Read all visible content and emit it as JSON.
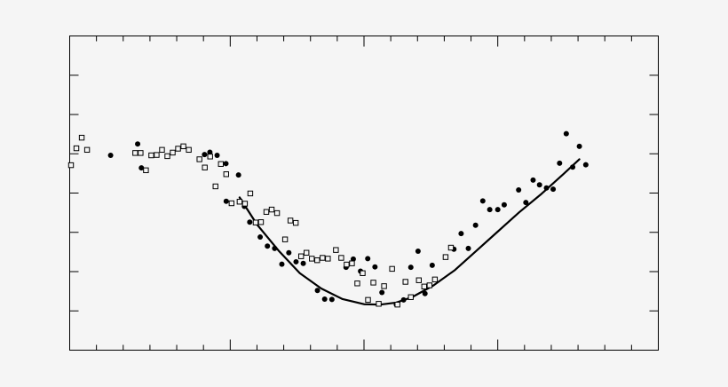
{
  "chart_data": {
    "type": "scatter",
    "title": "",
    "xlabel": "",
    "ylabel": "",
    "xlim": [
      0,
      22
    ],
    "ylim": [
      0,
      8
    ],
    "x_major_ticks": [
      6,
      11,
      16
    ],
    "x_minor_ticks": [
      1,
      2,
      3,
      4,
      5,
      7,
      8,
      9,
      10,
      12,
      13,
      14,
      15,
      17,
      18,
      19,
      20,
      21
    ],
    "y_ticks": [
      1,
      2,
      3,
      4,
      5,
      6,
      7
    ],
    "grid": false,
    "legend": "none",
    "colors": {
      "background": "#f5f5f5",
      "plot_background": "#f5f5f5",
      "ink": "#000000"
    },
    "series": [
      {
        "marker": "filled-circle",
        "points": [
          [
            1.53,
            4.96
          ],
          [
            2.54,
            5.25
          ],
          [
            2.68,
            4.64
          ],
          [
            5.04,
            4.98
          ],
          [
            5.24,
            5.04
          ],
          [
            5.51,
            4.96
          ],
          [
            5.84,
            4.75
          ],
          [
            6.31,
            4.46
          ],
          [
            5.85,
            3.79
          ],
          [
            6.53,
            3.66
          ],
          [
            6.73,
            3.26
          ],
          [
            7.12,
            2.88
          ],
          [
            7.39,
            2.65
          ],
          [
            7.66,
            2.59
          ],
          [
            7.93,
            2.19
          ],
          [
            8.19,
            2.48
          ],
          [
            8.46,
            2.25
          ],
          [
            8.73,
            2.21
          ],
          [
            9.26,
            1.52
          ],
          [
            9.53,
            1.3
          ],
          [
            9.8,
            1.29
          ],
          [
            10.33,
            2.11
          ],
          [
            10.6,
            2.32
          ],
          [
            10.87,
            2.01
          ],
          [
            11.14,
            2.33
          ],
          [
            11.41,
            2.12
          ],
          [
            11.67,
            1.47
          ],
          [
            12.21,
            1.16
          ],
          [
            12.48,
            1.28
          ],
          [
            12.75,
            2.11
          ],
          [
            13.02,
            2.52
          ],
          [
            13.28,
            1.44
          ],
          [
            13.55,
            2.16
          ],
          [
            14.36,
            2.57
          ],
          [
            14.63,
            2.97
          ],
          [
            14.9,
            2.59
          ],
          [
            15.17,
            3.18
          ],
          [
            15.44,
            3.8
          ],
          [
            15.7,
            3.58
          ],
          [
            16.0,
            3.58
          ],
          [
            16.24,
            3.7
          ],
          [
            16.78,
            4.08
          ],
          [
            17.05,
            3.76
          ],
          [
            17.32,
            4.33
          ],
          [
            17.56,
            4.21
          ],
          [
            17.82,
            4.13
          ],
          [
            18.07,
            4.1
          ],
          [
            18.31,
            4.76
          ],
          [
            18.56,
            5.51
          ],
          [
            18.8,
            4.66
          ],
          [
            19.05,
            5.19
          ],
          [
            19.29,
            4.72
          ]
        ]
      },
      {
        "marker": "open-square",
        "points": [
          [
            0.05,
            4.71
          ],
          [
            0.25,
            5.14
          ],
          [
            0.45,
            5.41
          ],
          [
            0.65,
            5.1
          ],
          [
            2.45,
            5.02
          ],
          [
            2.65,
            5.02
          ],
          [
            2.85,
            4.58
          ],
          [
            3.05,
            4.96
          ],
          [
            3.25,
            4.97
          ],
          [
            3.45,
            5.1
          ],
          [
            3.65,
            4.94
          ],
          [
            3.85,
            5.03
          ],
          [
            4.05,
            5.13
          ],
          [
            4.25,
            5.19
          ],
          [
            4.45,
            5.1
          ],
          [
            4.85,
            4.86
          ],
          [
            5.05,
            4.65
          ],
          [
            5.25,
            4.93
          ],
          [
            5.45,
            4.17
          ],
          [
            5.65,
            4.74
          ],
          [
            5.85,
            4.48
          ],
          [
            6.05,
            3.74
          ],
          [
            6.35,
            3.78
          ],
          [
            6.55,
            3.73
          ],
          [
            6.75,
            3.99
          ],
          [
            6.95,
            3.25
          ],
          [
            7.15,
            3.26
          ],
          [
            7.35,
            3.52
          ],
          [
            7.55,
            3.58
          ],
          [
            7.75,
            3.49
          ],
          [
            8.05,
            2.82
          ],
          [
            8.25,
            3.3
          ],
          [
            8.45,
            3.24
          ],
          [
            8.65,
            2.39
          ],
          [
            8.85,
            2.48
          ],
          [
            9.05,
            2.33
          ],
          [
            9.25,
            2.29
          ],
          [
            9.45,
            2.35
          ],
          [
            9.65,
            2.33
          ],
          [
            9.95,
            2.55
          ],
          [
            10.15,
            2.35
          ],
          [
            10.35,
            2.18
          ],
          [
            10.55,
            2.21
          ],
          [
            10.75,
            1.7
          ],
          [
            10.95,
            1.96
          ],
          [
            11.15,
            1.28
          ],
          [
            11.35,
            1.72
          ],
          [
            11.55,
            1.18
          ],
          [
            11.75,
            1.63
          ],
          [
            12.05,
            2.07
          ],
          [
            12.25,
            1.16
          ],
          [
            12.55,
            1.74
          ],
          [
            12.75,
            1.35
          ],
          [
            13.05,
            1.78
          ],
          [
            13.25,
            1.62
          ],
          [
            13.45,
            1.65
          ],
          [
            13.65,
            1.8
          ],
          [
            14.05,
            2.37
          ],
          [
            14.25,
            2.61
          ]
        ]
      },
      {
        "type": "line",
        "marker": "none",
        "x": [
          6.35,
          7.0,
          7.8,
          8.6,
          9.4,
          10.2,
          11.0,
          11.6,
          12.2,
          12.8,
          13.6,
          14.4,
          15.2,
          16.0,
          16.8,
          17.6,
          18.4,
          19.05
        ],
        "y": [
          3.89,
          3.2,
          2.54,
          1.96,
          1.57,
          1.3,
          1.17,
          1.16,
          1.21,
          1.35,
          1.65,
          2.04,
          2.53,
          3.02,
          3.51,
          3.96,
          4.45,
          4.86
        ]
      }
    ]
  }
}
